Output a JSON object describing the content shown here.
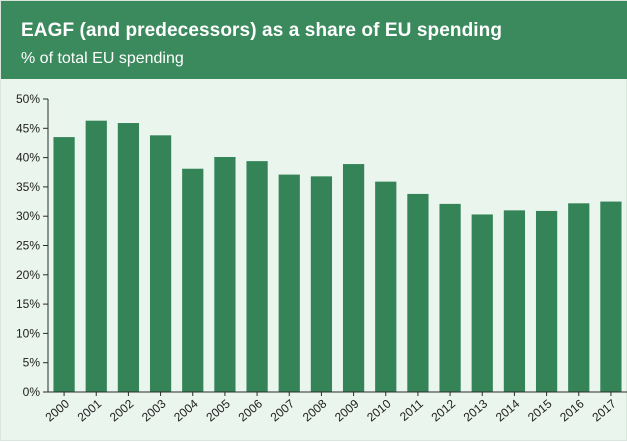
{
  "header": {
    "title": "EAGF (and predecessors) as a share of EU spending",
    "subtitle": "% of total EU spending"
  },
  "colors": {
    "header_bg": "#3b8a5d",
    "bar": "#348458",
    "plot_bg": "#eaf5ee",
    "axis": "#2b2b2b"
  },
  "chart_data": {
    "type": "bar",
    "title": "EAGF (and predecessors) as a share of EU spending",
    "subtitle": "% of total EU spending",
    "xlabel": "",
    "ylabel": "",
    "categories": [
      "2000",
      "2001",
      "2002",
      "2003",
      "2004",
      "2005",
      "2006",
      "2007",
      "2008",
      "2009",
      "2010",
      "2011",
      "2012",
      "2013",
      "2014",
      "2015",
      "2016",
      "2017"
    ],
    "values": [
      43.5,
      46.3,
      45.9,
      43.8,
      38.1,
      40.1,
      39.4,
      37.1,
      36.8,
      38.9,
      35.9,
      33.8,
      32.1,
      30.3,
      31.0,
      30.9,
      32.2,
      32.5
    ],
    "ylim": [
      0,
      50
    ],
    "yticks": [
      0,
      5,
      10,
      15,
      20,
      25,
      30,
      35,
      40,
      45,
      50
    ],
    "ytick_labels": [
      "0%",
      "5%",
      "10%",
      "15%",
      "20%",
      "25%",
      "30%",
      "35%",
      "40%",
      "45%",
      "50%"
    ],
    "grid": false,
    "legend": "none"
  }
}
